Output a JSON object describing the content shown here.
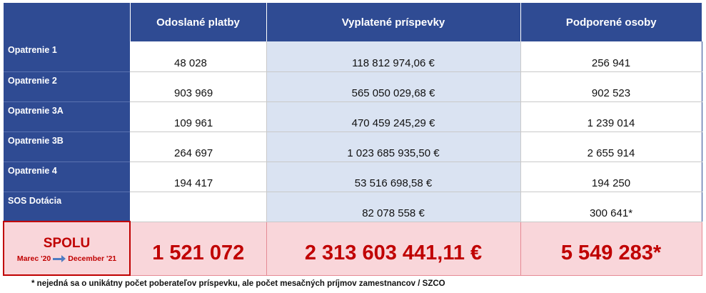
{
  "table": {
    "columns": [
      "Odoslané platby",
      "Vyplatené príspevky",
      "Podporené osoby"
    ],
    "rows": [
      {
        "label": "Opatrenie 1",
        "platby": "48 028",
        "prispevky": "118 812 974,06 €",
        "osoby": "256 941"
      },
      {
        "label": "Opatrenie 2",
        "platby": "903 969",
        "prispevky": "565 050 029,68 €",
        "osoby": "902 523"
      },
      {
        "label": "Opatrenie 3A",
        "platby": "109 961",
        "prispevky": "470 459 245,29 €",
        "osoby": "1 239 014"
      },
      {
        "label": "Opatrenie 3B",
        "platby": "264 697",
        "prispevky": "1 023 685 935,50 €",
        "osoby": "2 655 914"
      },
      {
        "label": "Opatrenie 4",
        "platby": "194 417",
        "prispevky": "53 516 698,58 €",
        "osoby": "194 250"
      },
      {
        "label": "SOS Dotácia",
        "platby": "",
        "prispevky": "82 078 558 €",
        "osoby": "300 641*"
      }
    ],
    "total": {
      "label": "SPOLU",
      "range_from": "Marec '20",
      "range_to": "December '21",
      "platby": "1 521 072",
      "prispevky": "2 313 603 441,11 €",
      "osoby": "5 549 283*"
    }
  },
  "footnote": "* nejedná sa o unikátny počet poberateľov príspevku, ale počet mesačných príjmov zamestnancov / SZCO",
  "colors": {
    "header_blue": "#2f4b93",
    "light_blue": "#dae3f2",
    "total_pink": "#f9d6da",
    "total_red": "#c00000"
  }
}
